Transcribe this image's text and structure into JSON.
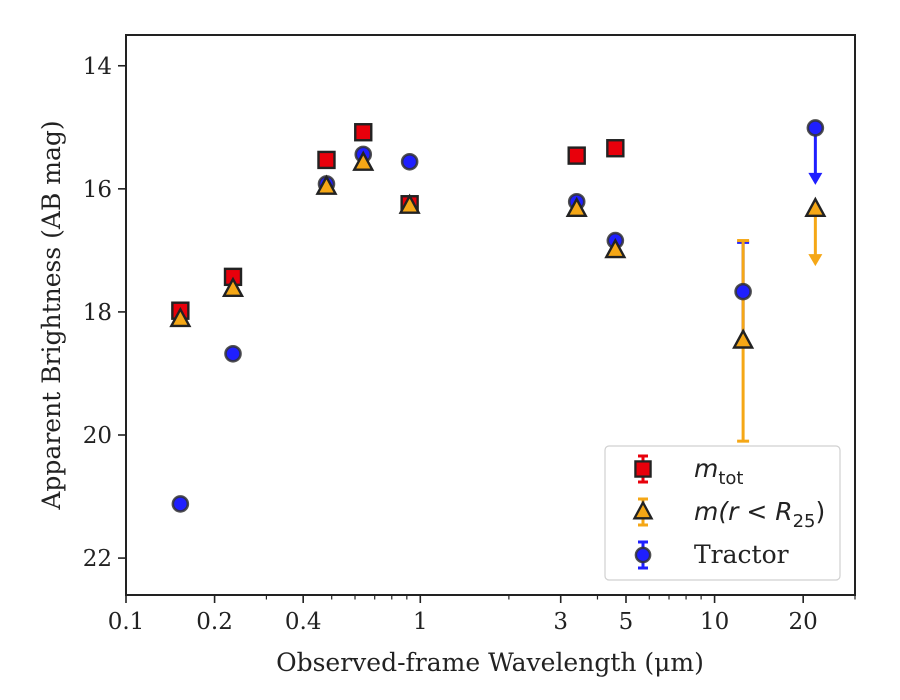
{
  "chart_data": {
    "type": "scatter",
    "xlabel": "Observed-frame Wavelength (μm)",
    "ylabel": "Apparent Brightness (AB mag)",
    "x_scale": "log",
    "xlim": [
      0.1,
      30
    ],
    "ylim": [
      22.6,
      13.5
    ],
    "y_inverted": true,
    "x_ticks": [
      0.1,
      0.2,
      0.4,
      1,
      3,
      5,
      10,
      20
    ],
    "x_tick_labels": [
      "0.1",
      "0.2",
      "0.4",
      "1",
      "3",
      "5",
      "10",
      "20"
    ],
    "y_ticks": [
      14,
      16,
      18,
      20,
      22
    ],
    "y_tick_labels": [
      "14",
      "16",
      "18",
      "20",
      "22"
    ],
    "grid": false,
    "legend_position": "lower-right",
    "series": [
      {
        "name": "m_tot",
        "legend_label": {
          "main": "m",
          "sub": "tot"
        },
        "marker": "square",
        "color": "#e8000b",
        "edge_color": "#222222",
        "points": [
          {
            "x": 0.153,
            "y": 17.98
          },
          {
            "x": 0.231,
            "y": 17.43
          },
          {
            "x": 0.48,
            "y": 15.53
          },
          {
            "x": 0.64,
            "y": 15.08
          },
          {
            "x": 0.92,
            "y": 16.25
          },
          {
            "x": 3.4,
            "y": 15.46
          },
          {
            "x": 4.6,
            "y": 15.34
          }
        ]
      },
      {
        "name": "m(r<R25)",
        "legend_label": {
          "main": "m(r < R",
          "sub": "25",
          "close": ")"
        },
        "marker": "triangle",
        "color": "#f5a716",
        "edge_color": "#222222",
        "points": [
          {
            "x": 0.153,
            "y": 18.12
          },
          {
            "x": 0.231,
            "y": 17.63
          },
          {
            "x": 0.48,
            "y": 15.97
          },
          {
            "x": 0.64,
            "y": 15.58
          },
          {
            "x": 0.92,
            "y": 16.28
          },
          {
            "x": 3.4,
            "y": 16.33
          },
          {
            "x": 4.6,
            "y": 17.0
          },
          {
            "x": 12.5,
            "y": 18.47,
            "yerr": 1.63
          },
          {
            "x": 22.0,
            "y": 16.33,
            "upper_limit": true
          }
        ]
      },
      {
        "name": "Tractor",
        "legend_label": {
          "main": "Tractor"
        },
        "marker": "circle",
        "color": "#1f1fff",
        "edge_color": "#333333",
        "points": [
          {
            "x": 0.153,
            "y": 21.12
          },
          {
            "x": 0.231,
            "y": 18.68
          },
          {
            "x": 0.48,
            "y": 15.92
          },
          {
            "x": 0.64,
            "y": 15.44
          },
          {
            "x": 0.92,
            "y": 15.56
          },
          {
            "x": 3.4,
            "y": 16.21
          },
          {
            "x": 4.6,
            "y": 16.84
          },
          {
            "x": 12.5,
            "y": 17.67,
            "yerr": 0.8
          },
          {
            "x": 22.0,
            "y": 15.01,
            "upper_limit": true
          }
        ]
      }
    ]
  }
}
